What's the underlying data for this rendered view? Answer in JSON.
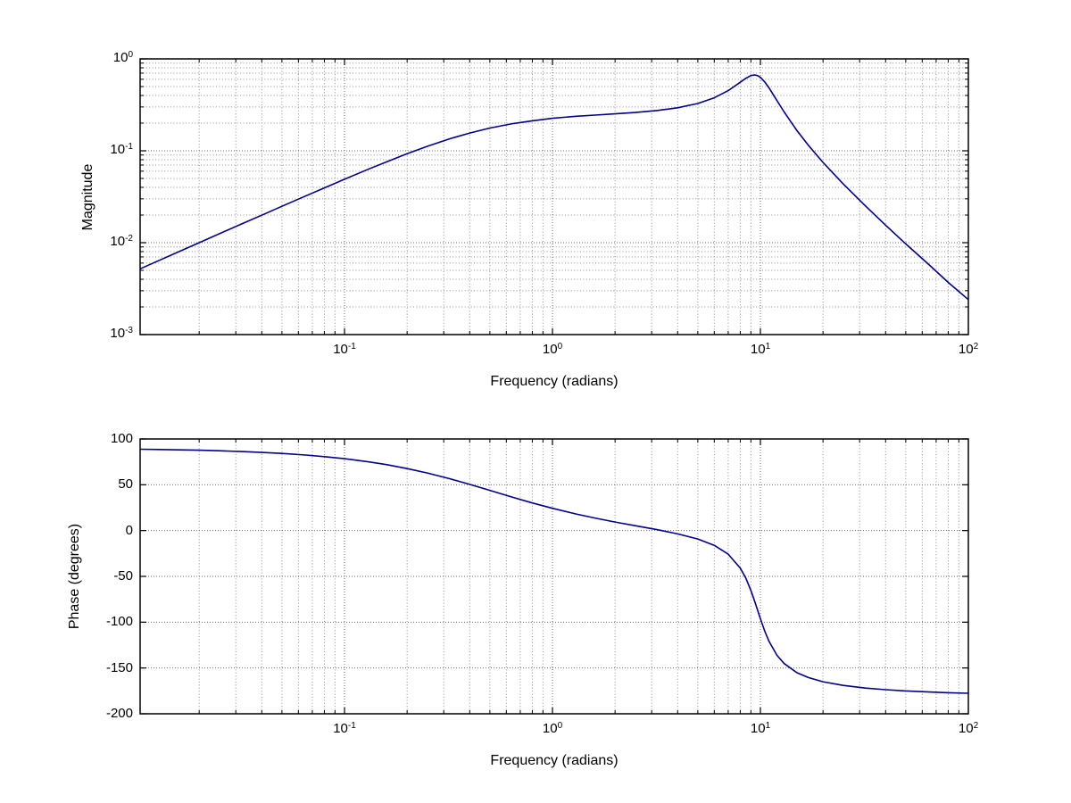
{
  "figure": {
    "background": "#ffffff",
    "curve_color": "#00008f",
    "grid_major_color": "#6e6e6e",
    "grid_minor_color": "#8f8f8f",
    "axis_color": "#000000"
  },
  "chart_data": [
    {
      "type": "line",
      "title": "",
      "xlabel": "Frequency (radians)",
      "ylabel": "Magnitude",
      "x_scale": "log",
      "y_scale": "log",
      "xlim": [
        0.0104,
        100
      ],
      "ylim": [
        0.001,
        1
      ],
      "x_tick_exponents": [
        -1,
        0,
        1,
        2
      ],
      "y_tick_exponents": [
        0,
        -1,
        -2,
        -3
      ],
      "grid": true,
      "legend": "none",
      "x": [
        0.0104,
        0.013,
        0.016,
        0.02,
        0.025,
        0.032,
        0.04,
        0.05,
        0.065,
        0.08,
        0.1,
        0.13,
        0.16,
        0.2,
        0.25,
        0.32,
        0.4,
        0.5,
        0.65,
        0.8,
        1,
        1.3,
        1.6,
        2,
        2.5,
        3.2,
        4,
        5,
        6,
        7,
        8,
        8.5,
        9,
        9.4,
        9.7,
        10,
        10.5,
        11,
        12,
        13,
        15,
        17,
        20,
        25,
        32,
        40,
        50,
        65,
        80,
        100
      ],
      "y": [
        0.0052,
        0.0065,
        0.008,
        0.01,
        0.0125,
        0.016,
        0.0199,
        0.0249,
        0.0322,
        0.0395,
        0.049,
        0.0629,
        0.0762,
        0.0929,
        0.1118,
        0.1348,
        0.1562,
        0.1768,
        0.1982,
        0.212,
        0.2258,
        0.2373,
        0.2448,
        0.2525,
        0.2611,
        0.2744,
        0.2937,
        0.3273,
        0.3771,
        0.4516,
        0.5573,
        0.6148,
        0.6586,
        0.6688,
        0.657,
        0.6294,
        0.5602,
        0.4829,
        0.3524,
        0.2643,
        0.1654,
        0.1148,
        0.0747,
        0.0436,
        0.0251,
        0.0155,
        0.0097,
        0.0057,
        0.0037,
        0.0024
      ]
    },
    {
      "type": "line",
      "title": "",
      "xlabel": "Frequency (radians)",
      "ylabel": "Phase (degrees)",
      "x_scale": "log",
      "y_scale": "linear",
      "xlim": [
        0.0104,
        100
      ],
      "ylim": [
        -200,
        100
      ],
      "x_tick_exponents": [
        -1,
        0,
        1,
        2
      ],
      "y_ticks": [
        100,
        50,
        0,
        -50,
        -100,
        -150,
        -200
      ],
      "grid": true,
      "legend": "none",
      "x": [
        0.0104,
        0.013,
        0.016,
        0.02,
        0.025,
        0.032,
        0.04,
        0.05,
        0.065,
        0.08,
        0.1,
        0.13,
        0.16,
        0.2,
        0.25,
        0.32,
        0.4,
        0.5,
        0.65,
        0.8,
        1,
        1.3,
        1.6,
        2,
        2.5,
        3.2,
        4,
        5,
        6,
        7,
        8,
        8.5,
        9,
        9.4,
        9.7,
        10,
        10.5,
        11,
        12,
        13,
        15,
        17,
        20,
        25,
        32,
        40,
        50,
        65,
        80,
        100
      ],
      "y": [
        88.8,
        88.5,
        88.1,
        87.7,
        87.1,
        86.3,
        85.3,
        84.2,
        82.5,
        80.7,
        78.5,
        75.1,
        71.9,
        67.7,
        62.9,
        56.7,
        50.4,
        43.9,
        36.1,
        30.2,
        24.3,
        18.1,
        13.7,
        9.3,
        5.3,
        0.9,
        -3.6,
        -9.2,
        -16.1,
        -25.7,
        -40.9,
        -51.8,
        -65.3,
        -77.6,
        -87.0,
        -96.3,
        -109.9,
        -121.0,
        -136.1,
        -145.2,
        -155.2,
        -160.5,
        -165.0,
        -169.0,
        -171.9,
        -173.7,
        -175.1,
        -176.2,
        -177.0,
        -177.6
      ]
    }
  ]
}
